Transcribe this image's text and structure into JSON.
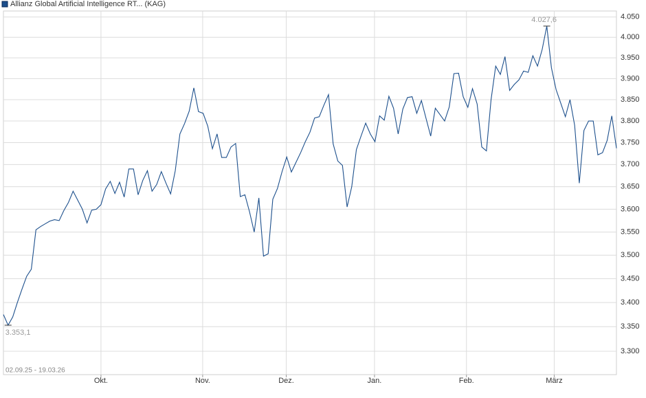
{
  "chart_data": {
    "type": "line",
    "series": [
      {
        "name": "Allianz Global Artificial Intelligence RT... (KAG)",
        "color": "#1c4f8c",
        "values": [
          3375,
          3353.1,
          3370,
          3400,
          3428,
          3455,
          3470,
          3555,
          3562,
          3568,
          3574,
          3577,
          3575,
          3597,
          3615,
          3640,
          3620,
          3600,
          3570,
          3598,
          3600,
          3610,
          3645,
          3662,
          3635,
          3660,
          3627,
          3690,
          3690,
          3632,
          3664,
          3686,
          3640,
          3655,
          3684,
          3658,
          3634,
          3686,
          3770,
          3794,
          3823,
          3878,
          3822,
          3818,
          3788,
          3736,
          3770,
          3716,
          3716,
          3740,
          3748,
          3628,
          3632,
          3594,
          3550,
          3625,
          3498,
          3503,
          3622,
          3646,
          3684,
          3717,
          3683,
          3705,
          3727,
          3752,
          3774,
          3807,
          3810,
          3837,
          3862,
          3747,
          3708,
          3698,
          3605,
          3650,
          3734,
          3765,
          3795,
          3770,
          3752,
          3812,
          3802,
          3858,
          3830,
          3770,
          3828,
          3855,
          3857,
          3818,
          3848,
          3806,
          3765,
          3830,
          3815,
          3800,
          3833,
          3912,
          3913,
          3857,
          3832,
          3876,
          3840,
          3740,
          3731,
          3850,
          3930,
          3910,
          3953,
          3872,
          3886,
          3897,
          3918,
          3915,
          3955,
          3930,
          3970,
          4027.6,
          3926,
          3874,
          3842,
          3810,
          3850,
          3790,
          3658,
          3778,
          3800,
          3800,
          3722,
          3727,
          3755,
          3812,
          3737
        ]
      }
    ],
    "min_label": "3.353,1",
    "max_label": "4.027,6",
    "date_range": "02.09.25 - 19.03.26",
    "log_scale": true,
    "grid": true,
    "ylim": [
      3253,
      4065
    ],
    "yticks": [
      {
        "value": 3300,
        "label": "3.300"
      },
      {
        "value": 3350,
        "label": "3.350"
      },
      {
        "value": 3400,
        "label": "3.400"
      },
      {
        "value": 3450,
        "label": "3.450"
      },
      {
        "value": 3500,
        "label": "3.500"
      },
      {
        "value": 3550,
        "label": "3.550"
      },
      {
        "value": 3600,
        "label": "3.600"
      },
      {
        "value": 3650,
        "label": "3.650"
      },
      {
        "value": 3700,
        "label": "3.700"
      },
      {
        "value": 3750,
        "label": "3.750"
      },
      {
        "value": 3800,
        "label": "3.800"
      },
      {
        "value": 3850,
        "label": "3.850"
      },
      {
        "value": 3900,
        "label": "3.900"
      },
      {
        "value": 3950,
        "label": "3.950"
      },
      {
        "value": 4000,
        "label": "4.000"
      },
      {
        "value": 4050,
        "label": "4.050"
      }
    ],
    "xlim": [
      0,
      132
    ],
    "xticks": [
      {
        "value": 21,
        "label": "Okt."
      },
      {
        "value": 42.9,
        "label": "Nov."
      },
      {
        "value": 60.9,
        "label": "Dez."
      },
      {
        "value": 79.9,
        "label": "Jan."
      },
      {
        "value": 99.7,
        "label": "Feb."
      },
      {
        "value": 118.6,
        "label": "März"
      }
    ]
  }
}
